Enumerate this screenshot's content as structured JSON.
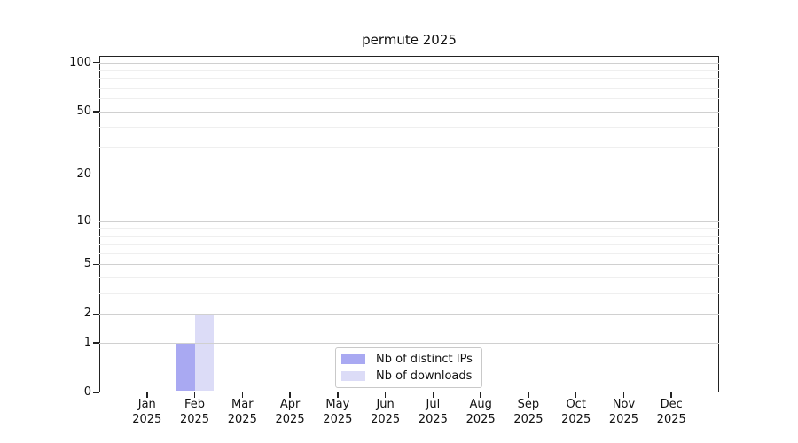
{
  "title": "permute 2025",
  "colors": {
    "bar_distinct_ips": "#a9a9f2",
    "bar_downloads": "#dcdcf7",
    "grid_major": "#d0d0d0",
    "grid_minor": "#efefef",
    "axis": "#222222",
    "text": "#111111"
  },
  "legend": {
    "items": [
      {
        "label": "Nb of distinct IPs"
      },
      {
        "label": "Nb of downloads"
      }
    ]
  },
  "chart_data": {
    "type": "bar",
    "title": "permute 2025",
    "categories": [
      "Jan",
      "Feb",
      "Mar",
      "Apr",
      "May",
      "Jun",
      "Jul",
      "Aug",
      "Sep",
      "Oct",
      "Nov",
      "Dec"
    ],
    "year": "2025",
    "series": [
      {
        "name": "Nb of distinct IPs",
        "color": "#a9a9f2",
        "values": [
          0,
          1,
          0,
          0,
          0,
          0,
          0,
          0,
          0,
          0,
          0,
          0
        ]
      },
      {
        "name": "Nb of downloads",
        "color": "#dcdcf7",
        "values": [
          0,
          2,
          0,
          0,
          0,
          0,
          0,
          0,
          0,
          0,
          0,
          0
        ]
      }
    ],
    "xlabel": "",
    "ylabel": "",
    "yscale": "log1p",
    "ylim": [
      0,
      110
    ],
    "yticks": [
      0,
      1,
      2,
      5,
      10,
      20,
      50,
      100
    ],
    "yticks_minor": [
      3,
      4,
      6,
      7,
      8,
      9,
      30,
      40,
      60,
      70,
      80,
      90
    ],
    "grid": "horizontal",
    "legend_position": "lower center"
  }
}
